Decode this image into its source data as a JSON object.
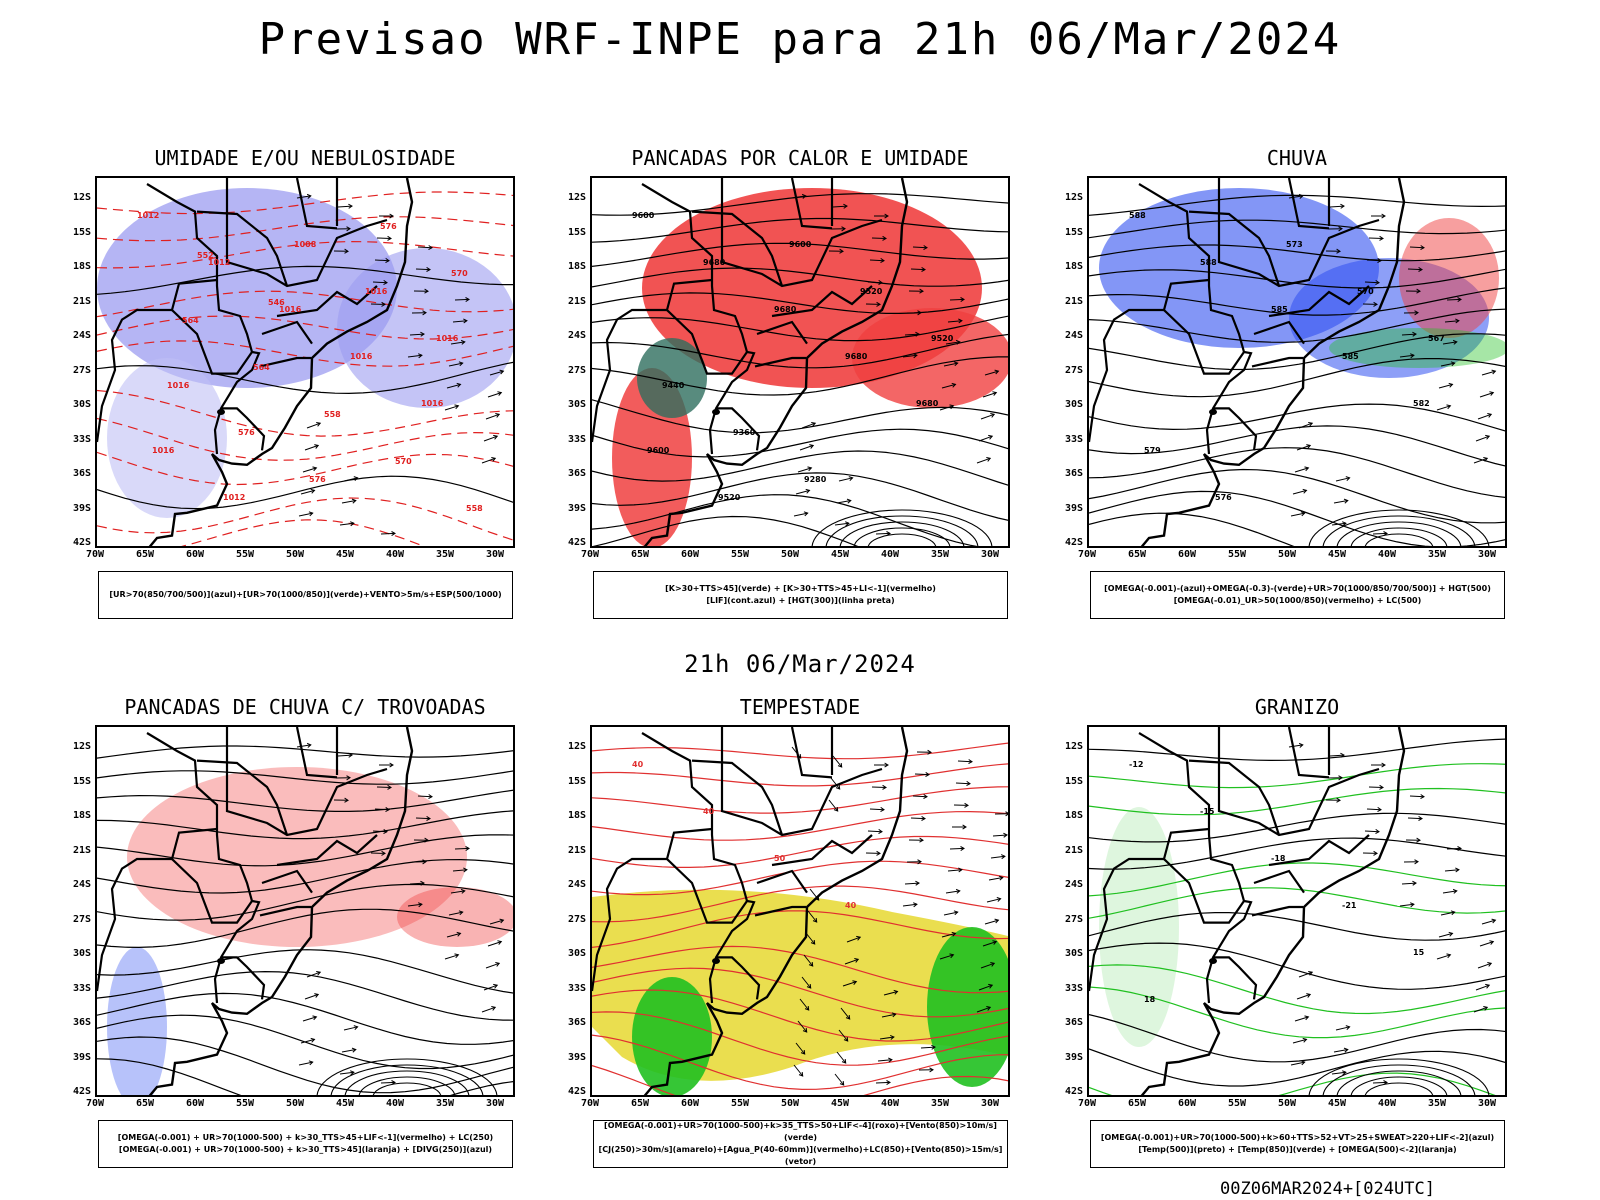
{
  "page": {
    "title": "Previsao WRF-INPE  para 21h 06/Mar/2024",
    "mid_time": "21h 06/Mar/2024",
    "footer_code": "00Z06MAR2024+[024UTC]"
  },
  "axes": {
    "lat_labels": [
      "12S",
      "15S",
      "18S",
      "21S",
      "24S",
      "27S",
      "30S",
      "33S",
      "36S",
      "39S",
      "42S"
    ],
    "lon_labels": [
      "70W",
      "65W",
      "60W",
      "55W",
      "50W",
      "45W",
      "40W",
      "35W",
      "30W"
    ]
  },
  "panels": [
    {
      "title": "UMIDADE E/OU NEBULOSIDADE",
      "legend": [
        "[UR>70(850/700/500)](azul)+[UR>70(1000/850)](verde)+VENTO>5m/s+ESP(500/1000)"
      ],
      "labels": [
        "1012",
        "1012",
        "1016",
        "1016",
        "1016",
        "1016",
        "1012",
        "1008",
        "1016",
        "1016",
        "1016",
        "576",
        "576",
        "576",
        "570",
        "564",
        "564",
        "558",
        "570",
        "558",
        "552",
        "546"
      ]
    },
    {
      "title": "PANCADAS POR CALOR E UMIDADE",
      "legend": [
        "[K>30+TTS>45](verde) + [K>30+TTS>45+LI<-1](vermelho)",
        "[LIF](cont.azul) + [HGT(300)](linha preta)"
      ],
      "labels": [
        "9600",
        "9680",
        "9680",
        "9680",
        "9680",
        "9600",
        "9520",
        "9600",
        "9520",
        "9520",
        "9440",
        "9360",
        "9280"
      ]
    },
    {
      "title": "CHUVA",
      "legend": [
        "[OMEGA(-0.001)-(azul)+OMEGA(-0.3)-(verde)+UR>70(1000/850/700/500)] + HGT(500)",
        "[OMEGA(-0.01)_UR>50(1000/850)(vermelho) + LC(500)"
      ],
      "labels": [
        "588",
        "588",
        "585",
        "585",
        "582",
        "579",
        "576",
        "573",
        "570",
        "567"
      ]
    },
    {
      "title": "PANCADAS DE CHUVA C/ TROVOADAS",
      "legend": [
        "[OMEGA(-0.001) + UR>70(1000-500) + k>30_TTS>45+LIF<-1](vermelho) + LC(250)",
        "[OMEGA(-0.001) + UR>70(1000-500) + k>30_TTS>45](laranja) + [DIVG(250)](azul)"
      ],
      "labels": []
    },
    {
      "title": "TEMPESTADE",
      "legend": [
        "[OMEGA(-0.001)+UR>70(1000-500)+k>35_TTS>50+LIF<-4](roxo)+[Vento(850)>10m/s](verde)",
        "[CJ(250)>30m/s](amarelo)+[Agua_P(40-60mm)](vermelho)+LC(850)+[Vento(850)>15m/s](vetor)"
      ],
      "labels": [
        "40",
        "40",
        "50",
        "40"
      ]
    },
    {
      "title": "GRANIZO",
      "legend": [
        "[OMEGA(-0.001)+UR>70(1000-500)+k>60+TTS>52+VT>25+SWEAT>220+LIF<-2](azul)",
        "[Temp(500)](preto) + [Temp(850)](verde) + [OMEGA(500)<-2](laranja)"
      ],
      "labels": [
        "-12",
        "-15",
        "-18",
        "-21",
        "15",
        "18"
      ]
    }
  ]
}
